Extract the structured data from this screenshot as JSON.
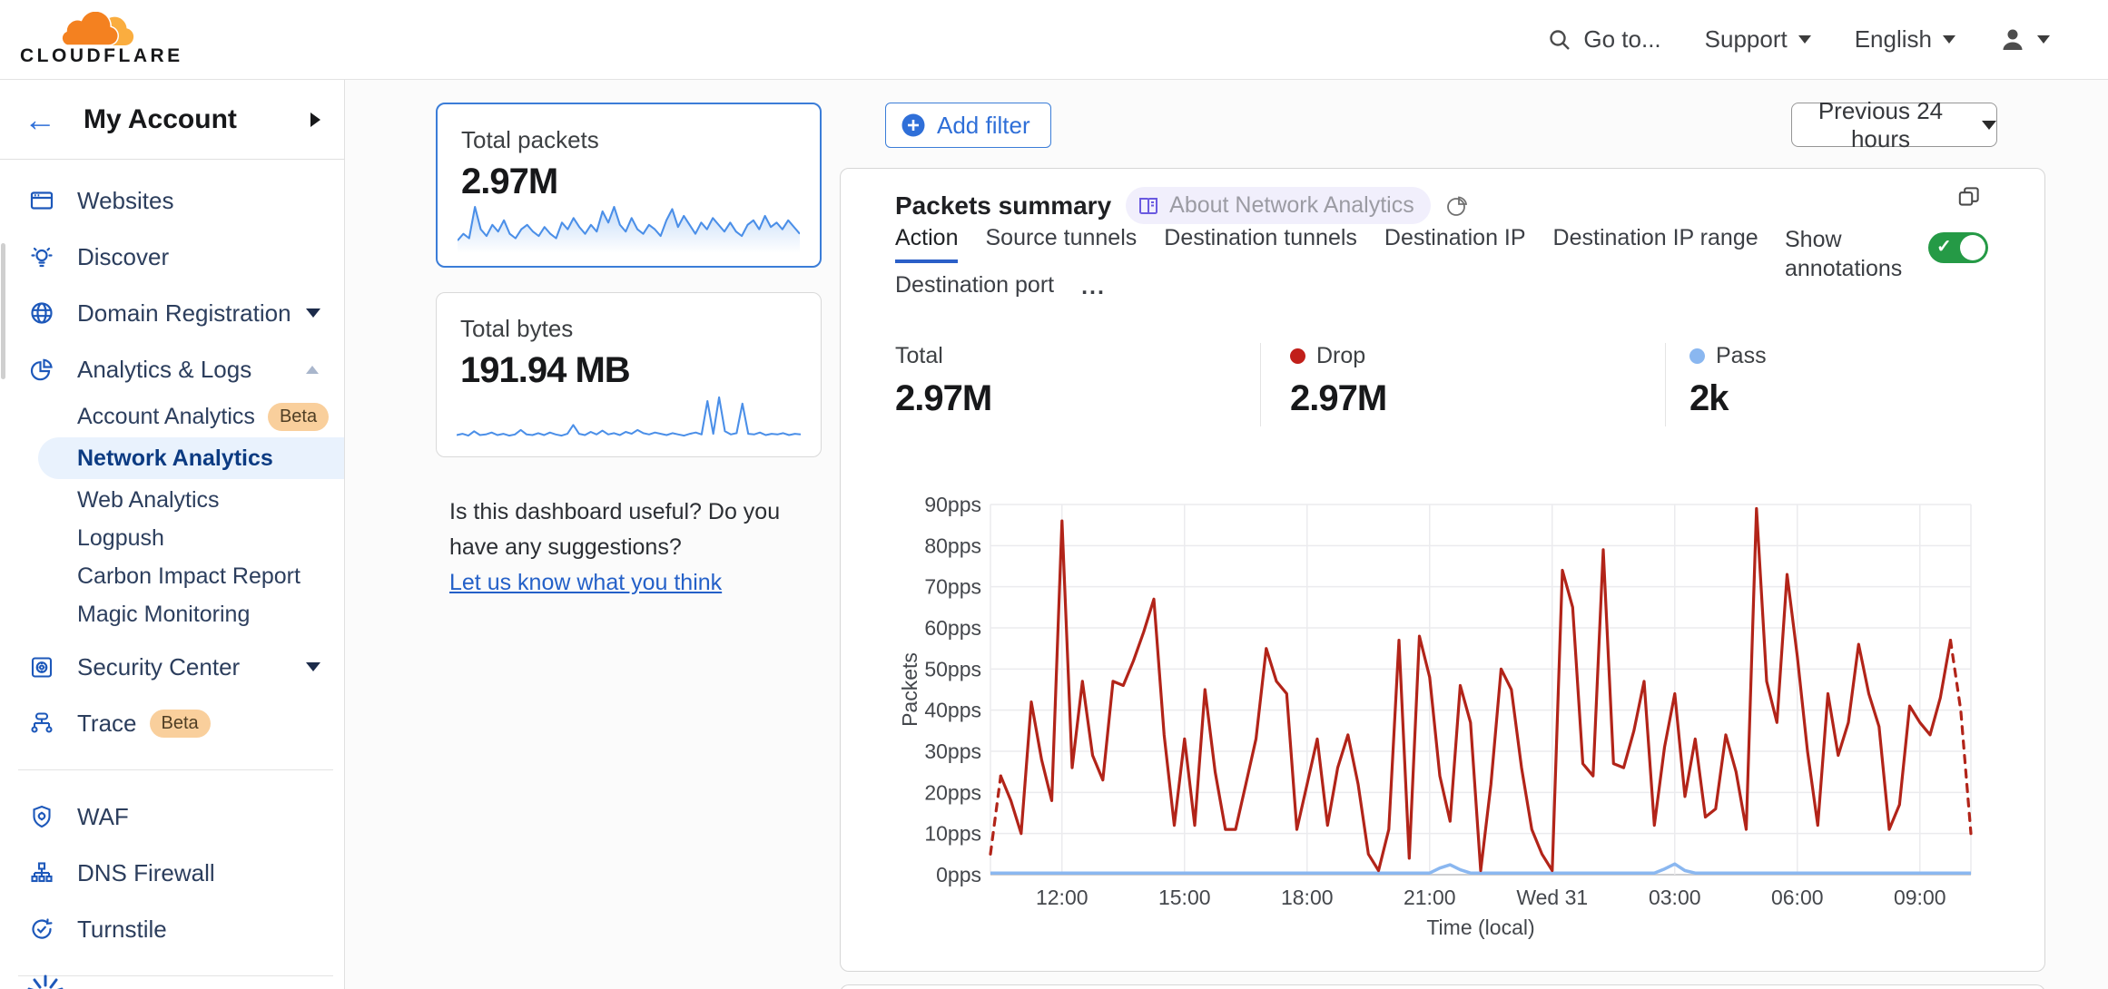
{
  "header": {
    "brand": "CLOUDFLARE",
    "go_to": "Go to...",
    "support": "Support",
    "english": "English"
  },
  "sidebar": {
    "account_label": "My Account",
    "items": [
      {
        "icon": "browser-icon",
        "label": "Websites"
      },
      {
        "icon": "lightbulb-icon",
        "label": "Discover"
      },
      {
        "icon": "globe-icon",
        "label": "Domain Registration",
        "caret": "down"
      },
      {
        "icon": "pie-chart-icon",
        "label": "Analytics & Logs",
        "caret": "up"
      },
      {
        "label": "Account Analytics",
        "indent": true,
        "badge": "Beta"
      },
      {
        "label": "Network Analytics",
        "indent": true,
        "selected": true
      },
      {
        "label": "Web Analytics",
        "indent": true
      },
      {
        "label": "Logpush",
        "indent": true
      },
      {
        "label": "Carbon Impact Report",
        "indent": true
      },
      {
        "label": "Magic Monitoring",
        "indent": true
      },
      {
        "icon": "safe-icon",
        "label": "Security Center",
        "caret": "down",
        "gap": true
      },
      {
        "icon": "trace-icon",
        "label": "Trace",
        "badge": "Beta"
      },
      {
        "divider": true
      },
      {
        "icon": "shield-gear-icon",
        "label": "WAF"
      },
      {
        "icon": "network-tree-icon",
        "label": "DNS Firewall"
      },
      {
        "icon": "refresh-check-icon",
        "label": "Turnstile"
      },
      {
        "divider": true
      }
    ]
  },
  "summary_cards": {
    "packets": {
      "title": "Total packets",
      "value": "2.97M",
      "spark": [
        20,
        35,
        25,
        95,
        45,
        30,
        55,
        40,
        65,
        35,
        25,
        45,
        55,
        40,
        30,
        50,
        35,
        25,
        60,
        45,
        70,
        50,
        35,
        55,
        40,
        85,
        60,
        95,
        55,
        40,
        70,
        45,
        35,
        55,
        45,
        30,
        65,
        90,
        50,
        75,
        55,
        35,
        60,
        45,
        70,
        55,
        40,
        60,
        40,
        30,
        55,
        65,
        45,
        75,
        50,
        60,
        45,
        65,
        50,
        35
      ]
    },
    "bytes": {
      "title": "Total bytes",
      "value": "191.94 MB",
      "spark": [
        8,
        10,
        7,
        14,
        8,
        9,
        12,
        8,
        10,
        7,
        9,
        16,
        9,
        8,
        11,
        8,
        12,
        9,
        7,
        10,
        24,
        10,
        8,
        13,
        9,
        15,
        9,
        11,
        8,
        13,
        10,
        16,
        11,
        9,
        12,
        10,
        8,
        11,
        9,
        7,
        10,
        12,
        9,
        62,
        10,
        68,
        14,
        9,
        11,
        58,
        10,
        9,
        12,
        8,
        10,
        9,
        11,
        8,
        10,
        9
      ]
    }
  },
  "feedback": {
    "question": "Is this dashboard useful? Do you have any suggestions?",
    "link_label": "Let us know what you think"
  },
  "toolbar": {
    "add_filter_label": "Add filter",
    "time_range_label": "Previous 24 hours"
  },
  "panel": {
    "title": "Packets summary",
    "about_badge": "About Network Analytics",
    "tabs": [
      "Action",
      "Source tunnels",
      "Destination tunnels",
      "Destination IP",
      "Destination IP range",
      "Destination port"
    ],
    "active_tab": "Action",
    "more_label": "...",
    "show_annotations": "Show annotations",
    "stats": [
      {
        "label": "Total",
        "value": "2.97M"
      },
      {
        "label": "Drop",
        "value": "2.97M",
        "dot": "#c11f1a"
      },
      {
        "label": "Pass",
        "value": "2k",
        "dot": "#8ab7f0"
      }
    ]
  },
  "chart_data": {
    "type": "line",
    "title": "Packets summary",
    "ylabel": "Packets",
    "xlabel": "Time (local)",
    "ylim": [
      0,
      90
    ],
    "y_tick_step": 10,
    "y_tick_suffix": "pps",
    "x_tick_labels": [
      "12:00",
      "15:00",
      "18:00",
      "21:00",
      "Wed 31",
      "03:00",
      "06:00",
      "09:00"
    ],
    "x_tick_start_index": 7,
    "x_tick_index_step": 12,
    "grid": true,
    "legend_position": "none",
    "series": [
      {
        "name": "Drop",
        "color": "#b22419",
        "dashed_head": 1,
        "dashed_tail": 2,
        "values": [
          5,
          24,
          18,
          10,
          42,
          28,
          18,
          86,
          26,
          47,
          29,
          23,
          47,
          46,
          52,
          59,
          67,
          34,
          12,
          33,
          12,
          45,
          25,
          11,
          11,
          22,
          33,
          55,
          47,
          44,
          11,
          22,
          33,
          12,
          26,
          34,
          22,
          5,
          1,
          11,
          57,
          4,
          58,
          48,
          24,
          13,
          46,
          37,
          1,
          22,
          50,
          45,
          26,
          11,
          5,
          1,
          74,
          65,
          27,
          24,
          79,
          27,
          26,
          35,
          47,
          12,
          31,
          44,
          19,
          33,
          14,
          16,
          34,
          25,
          11,
          89,
          47,
          37,
          73,
          53,
          30,
          12,
          44,
          29,
          37,
          56,
          44,
          36,
          11,
          17,
          41,
          37,
          34,
          43,
          57,
          40,
          10
        ]
      },
      {
        "name": "Pass",
        "color": "#8ab7f0",
        "values": [
          0.4,
          0.4,
          0.4,
          0.4,
          0.4,
          0.4,
          0.4,
          0.4,
          0.4,
          0.4,
          0.4,
          0.4,
          0.4,
          0.4,
          0.4,
          0.4,
          0.4,
          0.4,
          0.4,
          0.4,
          0.4,
          0.4,
          0.4,
          0.4,
          0.4,
          0.4,
          0.4,
          0.4,
          0.4,
          0.4,
          0.4,
          0.4,
          0.4,
          0.4,
          0.4,
          0.4,
          0.4,
          0.4,
          0.4,
          0.4,
          0.4,
          0.4,
          0.4,
          0.4,
          1.6,
          2.4,
          1.2,
          0.4,
          0.4,
          0.4,
          0.4,
          0.4,
          0.4,
          0.4,
          0.4,
          0.4,
          0.4,
          0.4,
          0.4,
          0.4,
          0.4,
          0.4,
          0.4,
          0.4,
          0.4,
          0.4,
          1.4,
          2.6,
          1.0,
          0.4,
          0.4,
          0.4,
          0.4,
          0.4,
          0.4,
          0.4,
          0.4,
          0.4,
          0.4,
          0.4,
          0.4,
          0.4,
          0.4,
          0.4,
          0.4,
          0.4,
          0.4,
          0.4,
          0.4,
          0.4,
          0.4,
          0.4,
          0.4,
          0.4,
          0.4,
          0.4,
          0.4
        ]
      }
    ]
  }
}
